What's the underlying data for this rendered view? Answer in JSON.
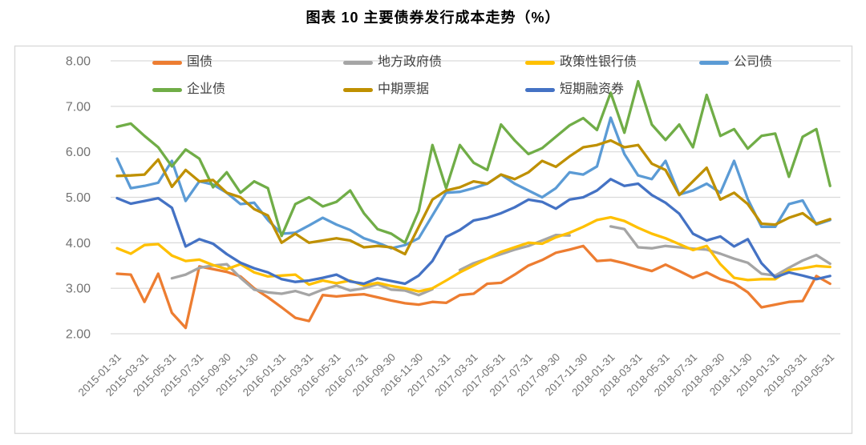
{
  "title": "图表 10 主要债券发行成本走势（%）",
  "colors": {
    "background": "#FFFFFF",
    "frame": "#D9D9D9",
    "grid": "#D9D9D9",
    "axis_text": "#737373",
    "legend_text": "#3F3F3F",
    "title_text": "#000000"
  },
  "chart_data": {
    "type": "line",
    "title": "图表 10 主要债券发行成本走势（%）",
    "grid": "horizontal",
    "legend_position": "top",
    "y_axis": {
      "range": [
        2.0,
        8.0
      ],
      "ticks": [
        "8.00",
        "7.00",
        "6.00",
        "5.00",
        "4.00",
        "3.00",
        "2.00"
      ]
    },
    "x_label_every": 2,
    "x": [
      "2015-01-31",
      "2015-02-28",
      "2015-03-31",
      "2015-04-30",
      "2015-05-31",
      "2015-06-30",
      "2015-07-31",
      "2015-08-31",
      "2015-09-30",
      "2015-10-31",
      "2015-11-30",
      "2015-12-31",
      "2016-01-31",
      "2016-02-29",
      "2016-03-31",
      "2016-04-30",
      "2016-05-31",
      "2016-06-30",
      "2016-07-31",
      "2016-08-31",
      "2016-09-30",
      "2016-10-31",
      "2016-11-30",
      "2016-12-31",
      "2017-01-31",
      "2017-02-28",
      "2017-03-31",
      "2017-04-30",
      "2017-05-31",
      "2017-06-30",
      "2017-07-31",
      "2017-08-31",
      "2017-09-30",
      "2017-10-31",
      "2017-11-30",
      "2017-12-31",
      "2018-01-31",
      "2018-02-28",
      "2018-03-31",
      "2018-04-30",
      "2018-05-31",
      "2018-06-30",
      "2018-07-31",
      "2018-08-31",
      "2018-09-30",
      "2018-10-31",
      "2018-11-30",
      "2018-12-31",
      "2019-01-31",
      "2019-02-28",
      "2019-03-31",
      "2019-04-30",
      "2019-05-31"
    ],
    "series": [
      {
        "name": "国债",
        "color": "#ED7D31",
        "values": [
          3.32,
          3.3,
          2.7,
          3.32,
          2.46,
          2.13,
          3.48,
          3.42,
          3.36,
          3.26,
          3.0,
          2.8,
          2.58,
          2.35,
          2.28,
          2.85,
          2.82,
          2.85,
          2.87,
          2.8,
          2.73,
          2.67,
          2.64,
          2.7,
          2.68,
          2.85,
          2.88,
          3.1,
          3.12,
          3.3,
          3.5,
          3.62,
          3.78,
          3.85,
          3.93,
          3.6,
          3.62,
          3.55,
          3.46,
          3.38,
          3.52,
          3.38,
          3.23,
          3.35,
          3.2,
          3.11,
          2.91,
          2.58,
          2.64,
          2.7,
          2.72,
          3.27,
          3.1
        ]
      },
      {
        "name": "地方政府债",
        "color": "#A5A5A5",
        "values": [
          null,
          null,
          null,
          null,
          3.22,
          3.3,
          3.45,
          3.5,
          3.53,
          3.23,
          2.97,
          2.91,
          2.88,
          2.94,
          2.85,
          2.97,
          3.06,
          2.95,
          3.0,
          3.09,
          2.97,
          2.95,
          2.85,
          2.98,
          null,
          3.4,
          3.55,
          3.65,
          3.75,
          3.85,
          3.93,
          4.05,
          4.17,
          4.16,
          null,
          null,
          4.36,
          4.3,
          3.9,
          3.88,
          3.93,
          3.9,
          3.87,
          3.85,
          3.76,
          3.65,
          3.56,
          3.32,
          3.28,
          3.45,
          3.61,
          3.73,
          3.54
        ]
      },
      {
        "name": "政策性银行债",
        "color": "#FFC000",
        "values": [
          3.88,
          3.76,
          3.95,
          3.97,
          3.72,
          3.6,
          3.63,
          3.51,
          3.42,
          3.53,
          3.35,
          3.26,
          3.28,
          3.3,
          3.08,
          3.17,
          3.11,
          3.17,
          3.06,
          3.12,
          3.05,
          3.0,
          2.93,
          3.0,
          3.17,
          3.35,
          3.5,
          3.65,
          3.8,
          3.9,
          4.0,
          3.98,
          4.12,
          4.22,
          4.35,
          4.5,
          4.56,
          4.48,
          4.33,
          4.2,
          4.1,
          3.97,
          3.84,
          3.93,
          3.53,
          3.23,
          3.18,
          3.2,
          3.2,
          3.4,
          3.44,
          3.49,
          3.47
        ]
      },
      {
        "name": "公司债",
        "color": "#5B9BD5",
        "values": [
          5.85,
          5.2,
          5.25,
          5.32,
          5.8,
          4.92,
          5.35,
          5.28,
          5.1,
          4.85,
          4.88,
          4.5,
          4.2,
          4.22,
          4.38,
          4.55,
          4.4,
          4.28,
          4.1,
          4.0,
          3.88,
          3.95,
          4.1,
          4.6,
          5.1,
          5.12,
          5.2,
          5.3,
          5.5,
          5.3,
          5.15,
          5.0,
          5.2,
          5.55,
          5.5,
          5.68,
          6.75,
          5.95,
          5.48,
          5.4,
          5.8,
          5.06,
          5.15,
          5.3,
          5.1,
          5.8,
          4.96,
          4.35,
          4.35,
          4.85,
          4.93,
          4.4,
          4.5
        ]
      },
      {
        "name": "企业债",
        "color": "#70AD47",
        "values": [
          6.55,
          6.62,
          6.35,
          6.1,
          5.68,
          6.05,
          5.85,
          5.22,
          5.55,
          5.1,
          5.35,
          5.2,
          4.15,
          4.85,
          5.0,
          4.8,
          4.9,
          5.15,
          4.65,
          4.3,
          4.2,
          4.0,
          4.7,
          6.15,
          5.2,
          6.15,
          5.76,
          5.6,
          6.6,
          6.25,
          5.95,
          6.08,
          6.33,
          6.58,
          6.74,
          6.48,
          7.3,
          6.42,
          7.55,
          6.6,
          6.26,
          6.6,
          6.1,
          7.25,
          6.35,
          6.5,
          6.07,
          6.35,
          6.4,
          5.45,
          6.33,
          6.5,
          5.25
        ]
      },
      {
        "name": "中期票据",
        "color": "#BF9000",
        "values": [
          5.47,
          5.48,
          5.5,
          5.83,
          5.23,
          5.6,
          5.35,
          5.38,
          5.1,
          5.0,
          4.74,
          4.6,
          4.0,
          4.2,
          4.0,
          4.05,
          4.1,
          4.05,
          3.9,
          3.93,
          3.9,
          3.75,
          4.35,
          4.95,
          5.15,
          5.22,
          5.35,
          5.3,
          5.5,
          5.4,
          5.55,
          5.8,
          5.67,
          5.9,
          6.1,
          6.15,
          6.25,
          6.1,
          6.15,
          5.74,
          5.6,
          5.05,
          5.35,
          5.65,
          4.95,
          5.1,
          4.85,
          4.42,
          4.4,
          4.55,
          4.65,
          4.42,
          4.52
        ]
      },
      {
        "name": "短期融资券",
        "color": "#4472C4",
        "values": [
          4.98,
          4.86,
          4.92,
          4.98,
          4.77,
          3.92,
          4.08,
          3.98,
          3.75,
          3.56,
          3.44,
          3.35,
          3.2,
          3.14,
          3.17,
          3.23,
          3.3,
          3.15,
          3.1,
          3.22,
          3.16,
          3.1,
          3.28,
          3.6,
          4.13,
          4.28,
          4.49,
          4.55,
          4.65,
          4.78,
          4.95,
          4.9,
          4.75,
          4.95,
          5.0,
          5.15,
          5.4,
          5.25,
          5.3,
          5.05,
          4.88,
          4.64,
          4.2,
          4.05,
          4.14,
          3.92,
          4.08,
          3.55,
          3.24,
          3.35,
          3.28,
          3.2,
          3.27
        ]
      }
    ],
    "legend_rows": [
      [
        "国债",
        "地方政府债",
        "政策性银行债",
        "公司债"
      ],
      [
        "企业债",
        "中期票据",
        "短期融资券"
      ]
    ]
  }
}
